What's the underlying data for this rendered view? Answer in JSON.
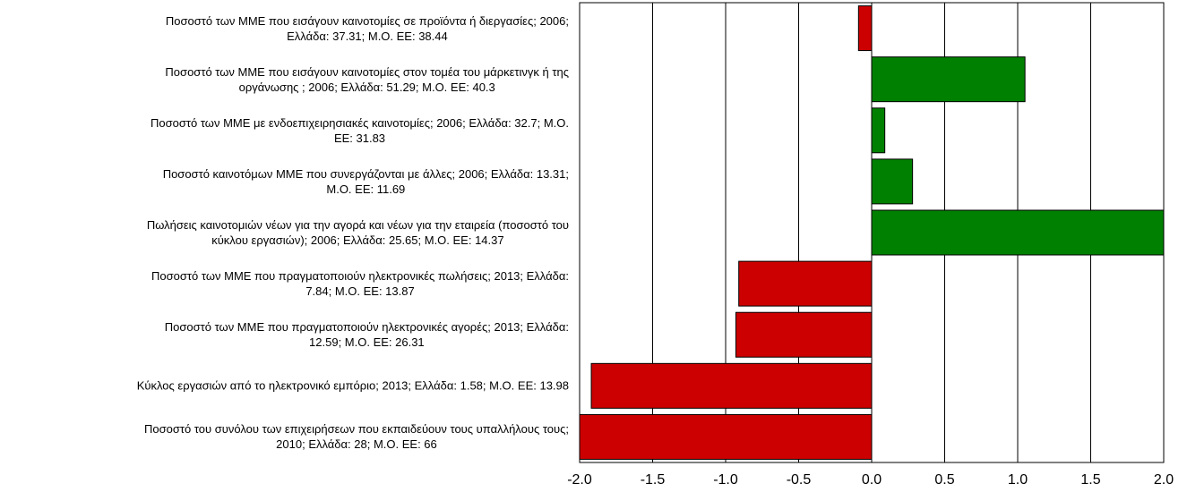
{
  "chart_data": {
    "type": "barh",
    "categories": [
      "Ποσοστό των ΜΜΕ που εισάγουν καινοτομίες σε προϊόντα ή διεργασίες; 2006;\nΕλλάδα: 37.31; Μ.Ο. ΕΕ: 38.44",
      "Ποσοστό των ΜΜΕ που εισάγουν καινοτομίες στον τομέα του μάρκετινγκ ή της\nοργάνωσης ; 2006; Ελλάδα: 51.29; Μ.Ο. ΕΕ: 40.3",
      "Ποσοστό των ΜΜΕ με ενδοεπιχειρησιακές καινοτομίες; 2006; Ελλάδα: 32.7; Μ.Ο.\nΕΕ: 31.83",
      "Ποσοστό καινοτόμων ΜΜΕ που συνεργάζονται με άλλες; 2006; Ελλάδα: 13.31;\nΜ.Ο. ΕΕ: 11.69",
      "Πωλήσεις καινοτομιών νέων για την αγορά και νέων για την εταιρεία (ποσοστό του\nκύκλου εργασιών); 2006; Ελλάδα: 25.65; Μ.Ο. ΕΕ: 14.37",
      "Ποσοστό των ΜΜΕ που πραγματοποιούν ηλεκτρονικές πωλήσεις; 2013; Ελλάδα:\n7.84; Μ.Ο. ΕΕ: 13.87",
      "Ποσοστό των ΜΜΕ που πραγματοποιούν ηλεκτρονικές αγορές; 2013; Ελλάδα:\n12.59; Μ.Ο. ΕΕ: 26.31",
      "Κύκλος εργασιών από το ηλεκτρονικό εμπόριο; 2013; Ελλάδα: 1.58; Μ.Ο. ΕΕ: 13.98",
      "Ποσοστό του συνόλου των επιχειρήσεων που εκπαιδεύουν τους υπαλλήλους τους;\n2010; Ελλάδα: 28; Μ.Ο. ΕΕ: 66"
    ],
    "values": [
      -0.09,
      1.05,
      0.09,
      0.28,
      2.0,
      -0.91,
      -0.93,
      -1.92,
      -2.0
    ],
    "colors": [
      "#cc0000",
      "#008000",
      "#008000",
      "#008000",
      "#008000",
      "#cc0000",
      "#cc0000",
      "#cc0000",
      "#cc0000"
    ],
    "xlim": [
      -2,
      2
    ],
    "xticks": [
      {
        "value": -2,
        "label": "-2.0"
      },
      -1.5,
      {
        "value": -1,
        "label": "-1.0"
      },
      -0.5,
      {
        "value": 0,
        "label": "0.0"
      },
      0.5,
      {
        "value": 1,
        "label": "1.0"
      },
      1.5,
      {
        "value": 2,
        "label": "2.0"
      }
    ],
    "grid": true
  }
}
